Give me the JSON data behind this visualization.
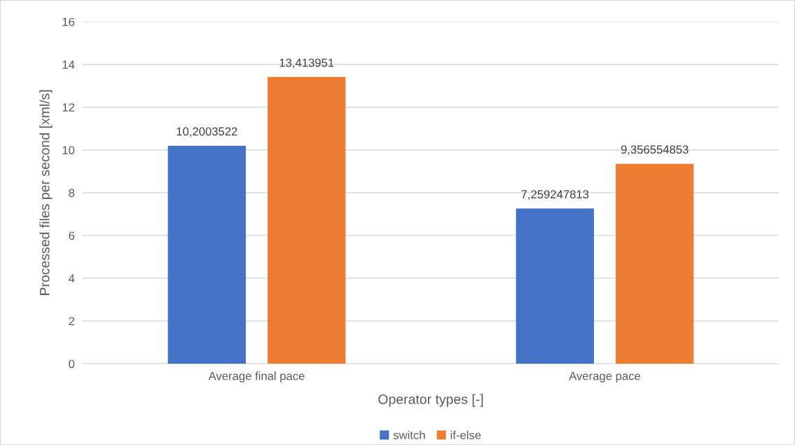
{
  "chart_data": {
    "type": "bar",
    "xlabel": "Operator types [-]",
    "ylabel": "Processed files per second [xml/s]",
    "categories": [
      "Average final pace",
      "Average pace"
    ],
    "series": [
      {
        "name": "switch",
        "color": "#4472c4",
        "values": [
          10.2003522,
          7.259247813
        ],
        "value_labels": [
          "10,2003522",
          "7,259247813"
        ]
      },
      {
        "name": "if-else",
        "color": "#ed7d31",
        "values": [
          13.413951,
          9.356554853
        ],
        "value_labels": [
          "13,413951",
          "9,356554853"
        ]
      }
    ],
    "ylim": [
      0,
      16
    ],
    "yticks": [
      0,
      2,
      4,
      6,
      8,
      10,
      12,
      14,
      16
    ],
    "grid": "y",
    "legend": "bottom"
  }
}
